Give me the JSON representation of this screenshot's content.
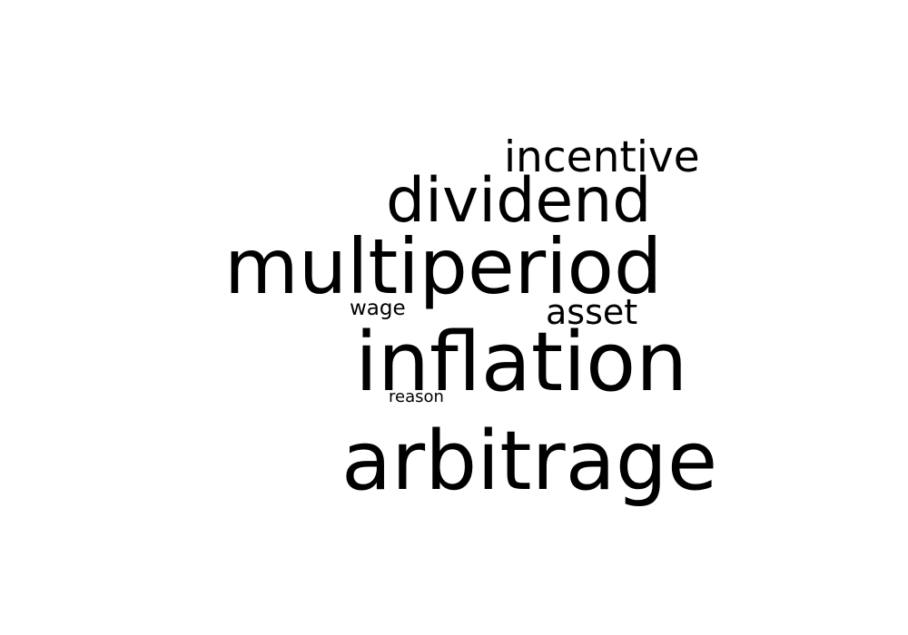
{
  "colors": {
    "background": "#ffffff",
    "text": "#000000"
  },
  "words": {
    "incentive": "incentive",
    "dividend": "dividend",
    "multiperiod": "multiperiod",
    "wage": "wage",
    "asset": "asset",
    "inflation": "inflation",
    "reason": "reason",
    "arbitrage": "arbitrage"
  }
}
